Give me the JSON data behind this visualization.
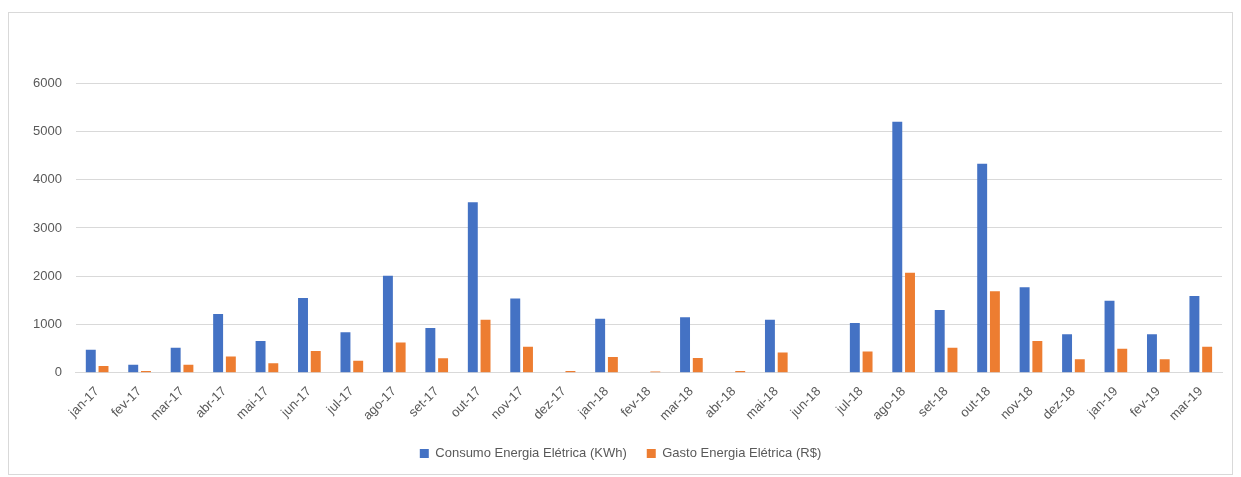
{
  "chart_data": {
    "type": "bar",
    "categories": [
      "jan-17",
      "fev-17",
      "mar-17",
      "abr-17",
      "mai-17",
      "jun-17",
      "jul-17",
      "ago-17",
      "set-17",
      "out-17",
      "nov-17",
      "dez-17",
      "jan-18",
      "fev-18",
      "mar-18",
      "abr-18",
      "mai-18",
      "jun-18",
      "jul-18",
      "ago-18",
      "set-18",
      "out-18",
      "nov-18",
      "dez-18",
      "jan-19",
      "fev-19",
      "mar-19"
    ],
    "series": [
      {
        "name": "Consumo Energia Elétrica (KWh)",
        "color": "#4472c4",
        "values": [
          480,
          170,
          520,
          1220,
          660,
          1550,
          840,
          2010,
          930,
          3530,
          1540,
          0,
          1120,
          0,
          1150,
          0,
          1100,
          0,
          1030,
          5200,
          1300,
          4330,
          1770,
          800,
          1490,
          800,
          1590
        ]
      },
      {
        "name": "Gasto Energia Elétrica (R$)",
        "color": "#ed7d31",
        "values": [
          140,
          40,
          170,
          340,
          200,
          450,
          250,
          630,
          300,
          1100,
          540,
          40,
          330,
          30,
          310,
          40,
          420,
          0,
          440,
          2070,
          520,
          1690,
          660,
          280,
          500,
          280,
          540
        ]
      }
    ],
    "ylim": [
      0,
      6000
    ],
    "yticks": [
      0,
      1000,
      2000,
      3000,
      4000,
      5000,
      6000
    ],
    "grid": "y",
    "legend": "bottom"
  }
}
